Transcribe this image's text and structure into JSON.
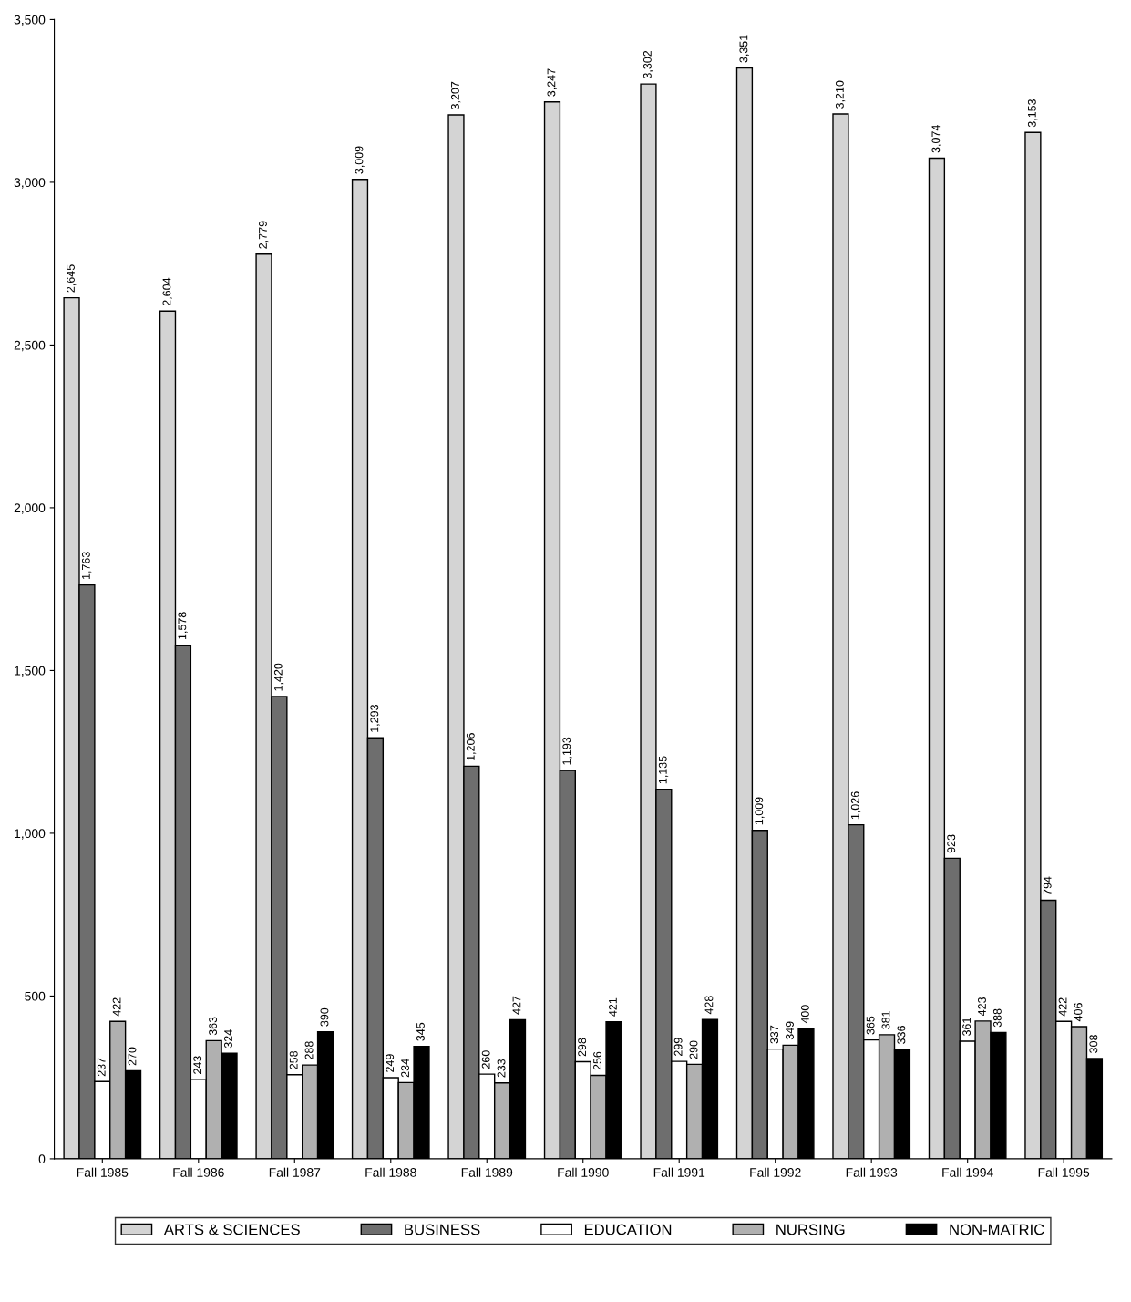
{
  "chart_data": {
    "type": "bar",
    "categories": [
      "Fall 1985",
      "Fall 1986",
      "Fall 1987",
      "Fall 1988",
      "Fall 1989",
      "Fall 1990",
      "Fall 1991",
      "Fall 1992",
      "Fall 1993",
      "Fall 1994",
      "Fall 1995"
    ],
    "series": [
      {
        "name": "ARTS & SCIENCES",
        "color": "#d4d4d4",
        "values": [
          2645,
          2604,
          2779,
          3009,
          3207,
          3247,
          3302,
          3351,
          3210,
          3074,
          3153
        ],
        "value_labels": [
          "2,645",
          "2,604",
          "2,779",
          "3,009",
          "3,207",
          "3,247",
          "3,302",
          "3,351",
          "3,210",
          "3,074",
          "3,153"
        ]
      },
      {
        "name": "BUSINESS",
        "color": "#6e6e6e",
        "values": [
          1763,
          1578,
          1420,
          1293,
          1206,
          1193,
          1135,
          1009,
          1026,
          923,
          794
        ],
        "value_labels": [
          "1,763",
          "1,578",
          "1,420",
          "1,293",
          "1,206",
          "1,193",
          "1,135",
          "1,009",
          "1,026",
          "923",
          "794"
        ]
      },
      {
        "name": "EDUCATION",
        "color": "#ffffff",
        "values": [
          237,
          243,
          258,
          249,
          260,
          298,
          299,
          337,
          365,
          361,
          422
        ],
        "value_labels": [
          "237",
          "243",
          "258",
          "249",
          "260",
          "298",
          "299",
          "337",
          "365",
          "361",
          "422"
        ]
      },
      {
        "name": "NURSING",
        "color": "#b0b0b0",
        "values": [
          422,
          363,
          288,
          234,
          233,
          256,
          290,
          349,
          381,
          423,
          406
        ],
        "value_labels": [
          "422",
          "363",
          "288",
          "234",
          "233",
          "256",
          "290",
          "349",
          "381",
          "423",
          "406"
        ]
      },
      {
        "name": "NON-MATRIC",
        "color": "#000000",
        "values": [
          270,
          324,
          390,
          345,
          427,
          421,
          428,
          400,
          336,
          388,
          308
        ],
        "value_labels": [
          "270",
          "324",
          "390",
          "345",
          "427",
          "421",
          "428",
          "400",
          "336",
          "388",
          "308"
        ]
      }
    ],
    "ylim": [
      0,
      3500
    ],
    "yticks": [
      0,
      {
        "value": 500,
        "label": "500"
      },
      {
        "value": 1000,
        "label": "1,000"
      },
      {
        "value": 1500,
        "label": "1,500"
      },
      {
        "value": 2000,
        "label": "2,000"
      },
      {
        "value": 2500,
        "label": "2,500"
      },
      {
        "value": 3000,
        "label": "3,000"
      },
      {
        "value": 3500,
        "label": "3,500"
      }
    ],
    "grid": false,
    "legend": "bottom"
  }
}
